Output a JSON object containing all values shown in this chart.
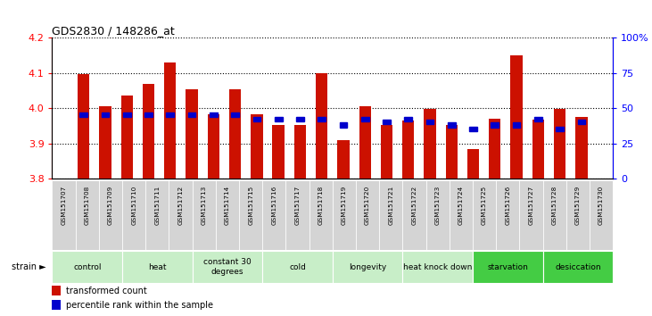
{
  "title": "GDS2830 / 148286_at",
  "samples": [
    "GSM151707",
    "GSM151708",
    "GSM151709",
    "GSM151710",
    "GSM151711",
    "GSM151712",
    "GSM151713",
    "GSM151714",
    "GSM151715",
    "GSM151716",
    "GSM151717",
    "GSM151718",
    "GSM151719",
    "GSM151720",
    "GSM151721",
    "GSM151722",
    "GSM151723",
    "GSM151724",
    "GSM151725",
    "GSM151726",
    "GSM151727",
    "GSM151728",
    "GSM151729",
    "GSM151730"
  ],
  "bar_values": [
    4.098,
    4.005,
    4.035,
    4.07,
    4.13,
    4.055,
    3.982,
    4.055,
    3.982,
    3.952,
    3.952,
    4.1,
    3.91,
    4.005,
    3.952,
    3.965,
    3.998,
    3.952,
    3.885,
    3.97,
    4.15,
    3.968,
    3.998,
    3.975
  ],
  "percentile_values": [
    45,
    45,
    45,
    45,
    45,
    45,
    45,
    45,
    42,
    42,
    42,
    42,
    38,
    42,
    40,
    42,
    40,
    38,
    35,
    38,
    38,
    42,
    35,
    40
  ],
  "groups": [
    {
      "label": "control",
      "start": 0,
      "end": 3,
      "color": "#c8eec8"
    },
    {
      "label": "heat",
      "start": 3,
      "end": 6,
      "color": "#c8eec8"
    },
    {
      "label": "constant 30\ndegrees",
      "start": 6,
      "end": 9,
      "color": "#c8eec8"
    },
    {
      "label": "cold",
      "start": 9,
      "end": 12,
      "color": "#c8eec8"
    },
    {
      "label": "longevity",
      "start": 12,
      "end": 15,
      "color": "#c8eec8"
    },
    {
      "label": "heat knock down",
      "start": 15,
      "end": 18,
      "color": "#c8eec8"
    },
    {
      "label": "starvation",
      "start": 18,
      "end": 21,
      "color": "#44cc44"
    },
    {
      "label": "desiccation",
      "start": 21,
      "end": 24,
      "color": "#44cc44"
    }
  ],
  "ylim_left": [
    3.8,
    4.2
  ],
  "ylim_right": [
    0,
    100
  ],
  "yticks_left": [
    3.8,
    3.9,
    4.0,
    4.1,
    4.2
  ],
  "yticks_right": [
    0,
    25,
    50,
    75,
    100
  ],
  "bar_color": "#cc1100",
  "percentile_color": "#0000cc",
  "bar_baseline": 3.8,
  "background_color": "#ffffff",
  "legend_tc": "transformed count",
  "legend_pr": "percentile rank within the sample"
}
